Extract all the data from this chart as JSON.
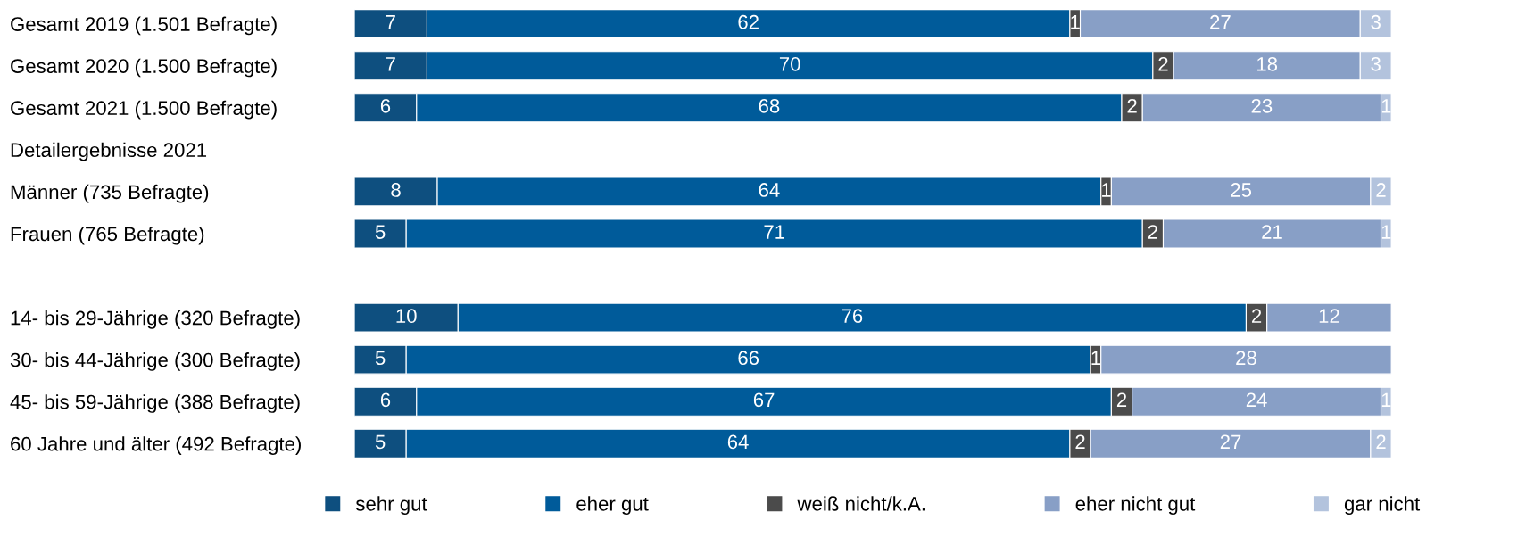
{
  "chart_data": {
    "type": "bar",
    "orientation": "horizontal",
    "stacked": true,
    "data_labels": true,
    "legend": "bottom",
    "grid": false,
    "tick_labels": "y",
    "xlim": [
      0,
      100
    ],
    "categories": [
      "Gesamt 2019 (1.501 Befragte)",
      "Gesamt 2020 (1.500 Befragte)",
      "Gesamt 2021 (1.500 Befragte)",
      "Detailergebnisse 2021",
      "Männer (735 Befragte)",
      "Frauen (765 Befragte)",
      null,
      "14- bis 29-Jährige (320 Befragte)",
      "30- bis 44-Jährige (300 Befragte)",
      "45- bis 59-Jährige (388 Befragte)",
      "60 Jahre und älter (492 Befragte)"
    ],
    "series": [
      {
        "name": "sehr gut",
        "color": "#0e4f7f",
        "values": [
          7,
          7,
          6,
          null,
          8,
          5,
          null,
          10,
          5,
          6,
          5
        ]
      },
      {
        "name": "eher gut",
        "color": "#005b9a",
        "values": [
          62,
          70,
          68,
          null,
          64,
          71,
          null,
          76,
          66,
          67,
          64
        ]
      },
      {
        "name": "weiß nicht/k.A.",
        "color": "#4b4b4b",
        "values": [
          1,
          2,
          2,
          null,
          1,
          2,
          null,
          2,
          1,
          2,
          2
        ]
      },
      {
        "name": "eher nicht gut",
        "color": "#889fc6",
        "values": [
          27,
          18,
          23,
          null,
          25,
          21,
          null,
          12,
          28,
          24,
          27
        ]
      },
      {
        "name": "gar nicht",
        "color": "#b3c3dd",
        "values": [
          3,
          3,
          1,
          null,
          2,
          1,
          null,
          null,
          null,
          1,
          2
        ]
      }
    ]
  }
}
